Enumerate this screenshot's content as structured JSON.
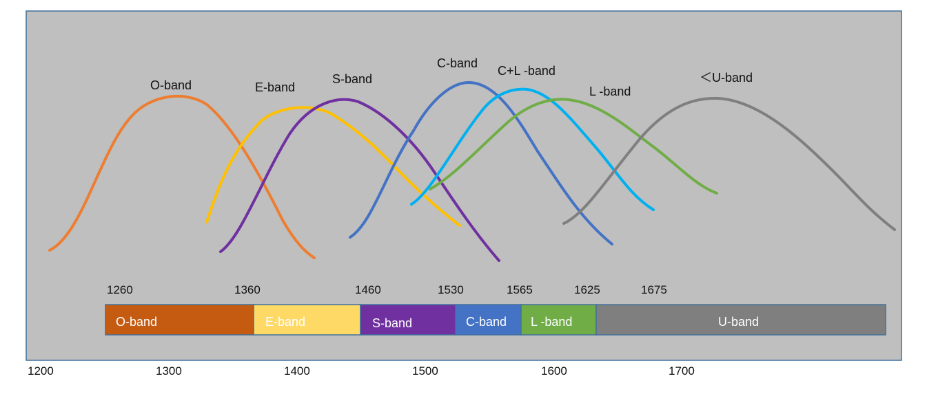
{
  "diagram": {
    "curves": [
      {
        "id": "o-band",
        "label": "O-band",
        "color": "#ED7D31"
      },
      {
        "id": "e-band",
        "label": "E-band",
        "color": "#FFC000"
      },
      {
        "id": "s-band",
        "label": "S-band",
        "color": "#7030A0"
      },
      {
        "id": "c-band",
        "label": "C-band",
        "color": "#4472C4"
      },
      {
        "id": "cl-band",
        "label": "C+L -band",
        "color": "#00B0F0"
      },
      {
        "id": "l-band",
        "label": "L -band",
        "color": "#70AD47"
      },
      {
        "id": "u-band",
        "label": "＜U-band",
        "color": "#7F7F7F"
      }
    ],
    "band_bar": [
      {
        "id": "o",
        "label": "O-band",
        "color": "#C55A11",
        "text_color": "#ffffff",
        "start": 1260,
        "end": 1360
      },
      {
        "id": "e",
        "label": "E-band",
        "color": "#FFD966",
        "text_color": "#ffffff",
        "start": 1360,
        "end": 1460
      },
      {
        "id": "s",
        "label": "S-band",
        "color": "#7030A0",
        "text_color": "#ffffff",
        "start": 1460,
        "end": 1530
      },
      {
        "id": "c",
        "label": "C-band",
        "color": "#4472C4",
        "text_color": "#ffffff",
        "start": 1530,
        "end": 1565
      },
      {
        "id": "l",
        "label": "L -band",
        "color": "#70AD47",
        "text_color": "#ffffff",
        "start": 1565,
        "end": 1625
      },
      {
        "id": "u",
        "label": "U-band",
        "color": "#7F7F7F",
        "text_color": "#ffffff",
        "start": 1625,
        "end": 1675
      }
    ],
    "boundary_labels": [
      "1260",
      "1360",
      "1460",
      "1530",
      "1565",
      "1625",
      "1675"
    ],
    "axis_labels": [
      "1200",
      "1300",
      "1400",
      "1500",
      "1600",
      "1700"
    ],
    "panel_color": "#BFBFBF",
    "panel_border": "#41719C"
  }
}
